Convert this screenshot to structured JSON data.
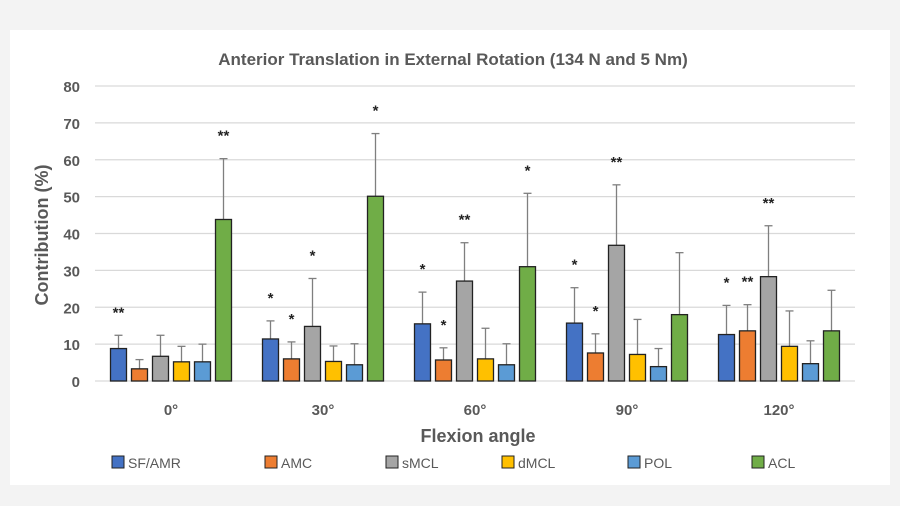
{
  "chart_data": {
    "type": "bar",
    "title": "Anterior Translation in External Rotation (134 N and 5 Nm)",
    "xlabel": "Flexion angle",
    "ylabel": "Contribution  (%)",
    "ylim": [
      0,
      80
    ],
    "yticks": [
      0,
      10,
      20,
      30,
      40,
      50,
      60,
      70,
      80
    ],
    "grid": true,
    "legend_position": "bottom",
    "categories": [
      "0°",
      "30°",
      "60°",
      "90°",
      "120°"
    ],
    "series": [
      {
        "name": "SF/AMR",
        "color": "#4472C4",
        "values": [
          8.8,
          11.4,
          15.5,
          15.7,
          12.6
        ],
        "error_top": [
          12.4,
          16.3,
          24.1,
          25.3,
          20.5
        ],
        "significance": [
          "**",
          "*",
          "*",
          "*",
          "*"
        ]
      },
      {
        "name": "AMC",
        "color": "#ED7D31",
        "values": [
          3.3,
          6.0,
          5.7,
          7.6,
          13.6
        ],
        "error_top": [
          5.8,
          10.6,
          9.0,
          12.8,
          20.7
        ],
        "significance": [
          "",
          "*",
          "*",
          "*",
          "**"
        ]
      },
      {
        "name": "sMCL",
        "color": "#A5A5A5",
        "values": [
          6.7,
          14.8,
          27.1,
          36.8,
          28.3
        ],
        "error_top": [
          12.4,
          27.8,
          37.5,
          53.2,
          42.1
        ],
        "significance": [
          "",
          "*",
          "**",
          "**",
          "**"
        ]
      },
      {
        "name": "dMCL",
        "color": "#FFC000",
        "values": [
          5.2,
          5.3,
          6.0,
          7.2,
          9.4
        ],
        "error_top": [
          9.4,
          9.5,
          14.3,
          16.7,
          19.0
        ],
        "significance": [
          "",
          "",
          "",
          "",
          ""
        ]
      },
      {
        "name": "POL",
        "color": "#5B9BD5",
        "values": [
          5.2,
          4.4,
          4.4,
          3.9,
          4.7
        ],
        "error_top": [
          10.0,
          10.1,
          10.1,
          8.8,
          10.9
        ],
        "significance": [
          "",
          "",
          "",
          "",
          ""
        ]
      },
      {
        "name": "ACL",
        "color": "#70AD47",
        "values": [
          43.8,
          50.1,
          31.0,
          18.0,
          13.6
        ],
        "error_top": [
          60.3,
          67.1,
          50.9,
          34.8,
          24.6
        ],
        "significance": [
          "**",
          "*",
          "*",
          "",
          ""
        ]
      }
    ]
  }
}
